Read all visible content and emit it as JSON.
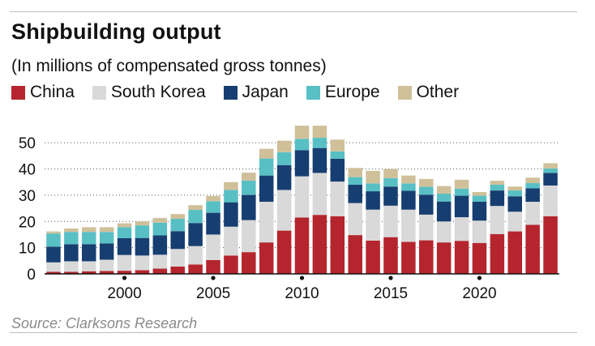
{
  "header": {
    "title": "Shipbuilding output",
    "subtitle": "(In millions of compensated gross tonnes)"
  },
  "source": "Source: Clarksons Research",
  "chart_data": {
    "type": "bar",
    "stacked": true,
    "title": "Shipbuilding output",
    "subtitle": "(In millions of compensated gross tonnes)",
    "xlabel": "",
    "ylabel": "",
    "ylim": [
      0,
      55
    ],
    "y_ticks": [
      0,
      10,
      20,
      30,
      40,
      50
    ],
    "x_ticks": [
      2000,
      2005,
      2010,
      2015,
      2020
    ],
    "grid": "horizontal dotted",
    "legend_position": "top",
    "categories": [
      1996,
      1997,
      1998,
      1999,
      2000,
      2001,
      2002,
      2003,
      2004,
      2005,
      2006,
      2007,
      2008,
      2009,
      2010,
      2011,
      2012,
      2013,
      2014,
      2015,
      2016,
      2017,
      2018,
      2019,
      2020,
      2021,
      2022,
      2023,
      2024
    ],
    "series": [
      {
        "name": "China",
        "color": "#b5252d",
        "values": [
          0.8,
          0.8,
          1.0,
          1.1,
          1.2,
          1.4,
          2.0,
          2.8,
          3.6,
          5.3,
          7.0,
          8.3,
          12.0,
          16.5,
          21.5,
          22.5,
          22.0,
          14.8,
          12.7,
          14.0,
          12.2,
          12.8,
          12.0,
          12.6,
          11.8,
          15.2,
          16.2,
          18.7,
          22.0
        ]
      },
      {
        "name": "South Korea",
        "color": "#d9d9d9",
        "values": [
          3.6,
          4.0,
          3.8,
          4.3,
          6.0,
          5.6,
          5.3,
          6.7,
          7.0,
          9.7,
          11.0,
          12.2,
          15.5,
          15.5,
          15.7,
          16.0,
          13.2,
          12.2,
          11.8,
          12.0,
          12.3,
          9.8,
          8.0,
          9.0,
          8.5,
          10.7,
          7.5,
          8.8,
          11.7
        ]
      },
      {
        "name": "Japan",
        "color": "#173e70",
        "values": [
          6.0,
          6.5,
          6.5,
          6.2,
          6.4,
          6.7,
          7.4,
          6.8,
          8.8,
          8.3,
          9.3,
          9.6,
          10.0,
          9.5,
          10.0,
          9.5,
          8.7,
          7.0,
          7.0,
          7.3,
          7.2,
          7.6,
          7.6,
          8.2,
          7.2,
          5.9,
          5.9,
          5.1,
          4.8
        ]
      },
      {
        "name": "Europe",
        "color": "#58c0c4",
        "values": [
          5.0,
          4.7,
          4.7,
          4.4,
          4.2,
          4.8,
          4.8,
          4.7,
          5.0,
          4.4,
          4.7,
          5.5,
          6.5,
          4.9,
          4.3,
          3.9,
          2.8,
          2.9,
          3.0,
          3.2,
          2.8,
          3.0,
          3.0,
          2.7,
          2.3,
          2.2,
          2.2,
          2.0,
          1.7
        ]
      },
      {
        "name": "Other",
        "color": "#cfc09a",
        "values": [
          0.8,
          1.3,
          1.8,
          1.8,
          1.5,
          1.5,
          1.8,
          1.8,
          1.8,
          2.0,
          3.0,
          3.0,
          3.7,
          4.4,
          5.0,
          4.6,
          4.5,
          3.5,
          4.8,
          3.5,
          3.0,
          3.0,
          2.9,
          3.4,
          1.4,
          1.5,
          1.5,
          2.1,
          2.0
        ]
      }
    ]
  }
}
